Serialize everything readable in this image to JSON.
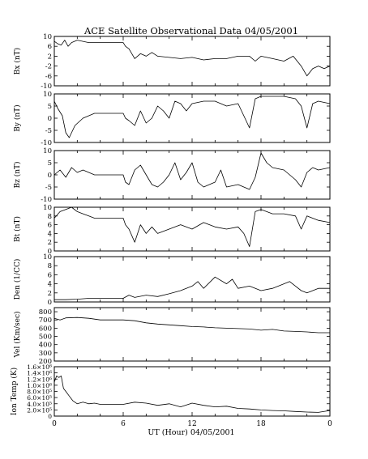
{
  "chart_data": {
    "type": "line",
    "title": "ACE Satellite Observational Data   04/05/2001",
    "xlabel": "UT (Hour)   04/05/2001",
    "x_ticks": [
      "0",
      "6",
      "12",
      "18",
      "0"
    ],
    "xlim": [
      0,
      24
    ],
    "panels": [
      {
        "id": "bx",
        "ylabel": "Bx (nT)",
        "ylim": [
          -10,
          10
        ],
        "yticks": [
          10,
          6,
          2,
          -2,
          -6,
          -10
        ],
        "ytick_labels": [
          "10",
          "6",
          "2",
          "-2",
          "-6",
          "-10"
        ],
        "zero_line": false,
        "series": [
          {
            "x": [
              0.0,
              0.3,
              0.6,
              0.9,
              1.2,
              1.5,
              2.0,
              2.5,
              3.0,
              3.5,
              4.0,
              5.0,
              6.0,
              6.2,
              6.5,
              7.0,
              7.5,
              8.0,
              8.5,
              9.0,
              10.0,
              11.0,
              12.0,
              13.0,
              14.0,
              15.0,
              16.0,
              17.0,
              17.5,
              18.0,
              19.0,
              20.0,
              20.8,
              21.5,
              22.0,
              22.5,
              23.0,
              23.5,
              24.0
            ],
            "y": [
              8.0,
              7.0,
              6.5,
              8.5,
              6.0,
              7.5,
              8.5,
              8.0,
              7.5,
              7.5,
              7.5,
              7.5,
              7.5,
              6.0,
              5.0,
              1.0,
              3.0,
              2.0,
              3.5,
              2.0,
              1.5,
              1.0,
              1.5,
              0.5,
              1.0,
              1.0,
              2.0,
              2.0,
              0.0,
              2.0,
              1.0,
              0.0,
              2.0,
              -2.0,
              -6.0,
              -3.0,
              -2.0,
              -3.0,
              -2.0
            ]
          }
        ]
      },
      {
        "id": "by",
        "ylabel": "By (nT)",
        "ylim": [
          -10,
          10
        ],
        "yticks": [
          10,
          5,
          0,
          -5,
          -10
        ],
        "ytick_labels": [
          "10",
          "5",
          "0",
          "-5",
          "-10"
        ],
        "zero_line": false,
        "series": [
          {
            "x": [
              0.0,
              0.3,
              0.7,
              1.0,
              1.3,
              1.8,
              2.5,
              3.0,
              3.5,
              4.0,
              5.0,
              6.0,
              6.2,
              6.5,
              7.0,
              7.5,
              8.0,
              8.5,
              9.0,
              9.5,
              10.0,
              10.5,
              11.0,
              11.5,
              12.0,
              13.0,
              14.0,
              15.0,
              16.0,
              16.5,
              17.0,
              17.5,
              18.0,
              19.0,
              20.0,
              21.0,
              21.5,
              22.0,
              22.5,
              23.0,
              24.0
            ],
            "y": [
              7.0,
              4.0,
              1.0,
              -6.0,
              -8.0,
              -3.0,
              0.0,
              1.0,
              2.0,
              2.0,
              2.0,
              2.0,
              0.0,
              -1.0,
              -3.0,
              3.0,
              -2.0,
              0.0,
              5.0,
              3.0,
              0.0,
              7.0,
              6.0,
              3.0,
              6.0,
              7.0,
              7.0,
              5.0,
              6.0,
              1.0,
              -4.0,
              8.0,
              9.0,
              9.0,
              9.0,
              8.0,
              5.0,
              -4.0,
              6.0,
              7.0,
              6.0
            ]
          }
        ]
      },
      {
        "id": "bz",
        "ylabel": "Bz (nT)",
        "ylim": [
          -10,
          10
        ],
        "yticks": [
          10,
          5,
          0,
          -5,
          -10
        ],
        "ytick_labels": [
          "10",
          "5",
          "0",
          "-5",
          "-10"
        ],
        "zero_line": false,
        "series": [
          {
            "x": [
              0.0,
              0.5,
              1.0,
              1.5,
              2.0,
              2.5,
              3.0,
              3.5,
              4.0,
              5.0,
              6.0,
              6.2,
              6.5,
              7.0,
              7.5,
              8.0,
              8.5,
              9.0,
              9.5,
              10.0,
              10.5,
              11.0,
              11.5,
              12.0,
              12.5,
              13.0,
              14.0,
              14.5,
              15.0,
              16.0,
              17.0,
              17.5,
              18.0,
              18.5,
              19.0,
              20.0,
              21.0,
              21.5,
              22.0,
              22.5,
              23.0,
              24.0
            ],
            "y": [
              0.0,
              2.0,
              -1.0,
              3.0,
              1.0,
              2.0,
              1.0,
              0.0,
              0.0,
              0.0,
              0.0,
              -3.0,
              -4.0,
              2.0,
              4.0,
              0.0,
              -4.0,
              -5.0,
              -3.0,
              0.0,
              5.0,
              -2.0,
              1.0,
              5.0,
              -3.0,
              -5.0,
              -3.0,
              2.0,
              -5.0,
              -4.0,
              -6.0,
              -1.0,
              9.0,
              5.0,
              3.0,
              2.0,
              -2.0,
              -5.0,
              1.0,
              3.0,
              2.0,
              3.0
            ]
          }
        ]
      },
      {
        "id": "bt",
        "ylabel": "Bt (nT)",
        "ylim": [
          0,
          10
        ],
        "yticks": [
          10,
          8,
          6,
          4,
          2,
          0
        ],
        "ytick_labels": [
          "10",
          "8",
          "6",
          "4",
          "2",
          "0"
        ],
        "zero_line": false,
        "series": [
          {
            "x": [
              0.0,
              0.5,
              1.0,
              1.5,
              2.0,
              2.5,
              3.0,
              3.5,
              4.0,
              5.0,
              6.0,
              6.2,
              6.5,
              7.0,
              7.5,
              8.0,
              8.5,
              9.0,
              10.0,
              11.0,
              12.0,
              13.0,
              14.0,
              15.0,
              16.0,
              16.5,
              17.0,
              17.5,
              18.0,
              19.0,
              20.0,
              21.0,
              21.5,
              22.0,
              23.0,
              24.0
            ],
            "y": [
              7.5,
              9.0,
              9.5,
              10.0,
              9.0,
              8.5,
              8.0,
              7.5,
              7.5,
              7.5,
              7.5,
              6.0,
              5.0,
              2.0,
              6.0,
              4.0,
              5.5,
              4.0,
              5.0,
              6.0,
              5.0,
              6.5,
              5.5,
              5.0,
              5.5,
              4.0,
              1.0,
              9.0,
              9.5,
              8.5,
              8.5,
              8.0,
              5.0,
              8.0,
              7.0,
              6.5
            ]
          }
        ]
      },
      {
        "id": "den",
        "ylabel": "Den (1/CC)",
        "ylim": [
          0,
          10
        ],
        "yticks": [
          10,
          8,
          6,
          4,
          2,
          0
        ],
        "ytick_labels": [
          "10",
          "8",
          "6",
          "4",
          "2",
          "0"
        ],
        "zero_line": false,
        "series": [
          {
            "x": [
              0.0,
              1.0,
              2.0,
              3.0,
              4.0,
              5.0,
              6.0,
              6.5,
              7.0,
              8.0,
              9.0,
              10.0,
              11.0,
              12.0,
              12.5,
              13.0,
              14.0,
              15.0,
              15.5,
              16.0,
              17.0,
              18.0,
              19.0,
              20.0,
              20.5,
              21.0,
              21.5,
              22.0,
              22.5,
              23.0,
              24.0
            ],
            "y": [
              0.5,
              0.5,
              0.6,
              0.8,
              0.8,
              0.8,
              0.8,
              1.5,
              1.0,
              1.5,
              1.2,
              1.8,
              2.5,
              3.5,
              4.5,
              3.0,
              5.5,
              4.0,
              5.0,
              3.0,
              3.5,
              2.5,
              3.0,
              4.0,
              4.5,
              3.5,
              2.5,
              2.0,
              2.5,
              3.0,
              3.0
            ]
          }
        ]
      },
      {
        "id": "vel",
        "ylabel": "Vel (Km/sec)",
        "ylim": [
          200,
          850
        ],
        "yticks": [
          800,
          700,
          600,
          500,
          400,
          300,
          200
        ],
        "ytick_labels": [
          "800",
          "700",
          "600",
          "500",
          "400",
          "300",
          "200"
        ],
        "zero_line": false,
        "series": [
          {
            "x": [
              0.0,
              0.5,
              1.0,
              2.0,
              3.0,
              4.0,
              5.0,
              6.0,
              7.0,
              8.0,
              9.0,
              10.0,
              11.0,
              12.0,
              13.0,
              14.0,
              15.0,
              16.0,
              17.0,
              18.0,
              19.0,
              20.0,
              21.0,
              22.0,
              23.0,
              24.0
            ],
            "y": [
              720,
              700,
              725,
              730,
              720,
              700,
              700,
              700,
              690,
              665,
              650,
              640,
              630,
              620,
              615,
              605,
              600,
              595,
              590,
              575,
              585,
              565,
              560,
              555,
              545,
              545
            ]
          }
        ]
      },
      {
        "id": "temp",
        "ylabel": "Ion Temp (K)",
        "ylim": [
          0,
          1600000
        ],
        "yticks": [
          1600000,
          1400000,
          1200000,
          1000000,
          800000,
          600000,
          400000,
          200000,
          0
        ],
        "ytick_labels": [
          "1.6×10⁶",
          "1.4×10⁶",
          "1.2×10⁶",
          "1.0×10⁶",
          "8.0×10⁵",
          "6.0×10⁵",
          "4.0×10⁵",
          "2.0×10⁵",
          "0"
        ],
        "zero_line": false,
        "series": [
          {
            "x": [
              0.0,
              0.2,
              0.4,
              0.6,
              0.8,
              1.0,
              1.3,
              1.6,
              2.0,
              2.5,
              3.0,
              3.5,
              4.0,
              5.0,
              6.0,
              7.0,
              8.0,
              9.0,
              10.0,
              11.0,
              12.0,
              13.0,
              14.0,
              15.0,
              16.0,
              17.0,
              18.0,
              19.0,
              20.0,
              21.0,
              22.0,
              23.0,
              24.0
            ],
            "y": [
              1100000,
              1300000,
              1250000,
              1300000,
              900000,
              800000,
              650000,
              500000,
              400000,
              450000,
              400000,
              420000,
              380000,
              380000,
              380000,
              450000,
              420000,
              350000,
              400000,
              300000,
              420000,
              350000,
              300000,
              320000,
              250000,
              230000,
              200000,
              180000,
              170000,
              150000,
              130000,
              120000,
              180000
            ]
          }
        ]
      }
    ]
  }
}
